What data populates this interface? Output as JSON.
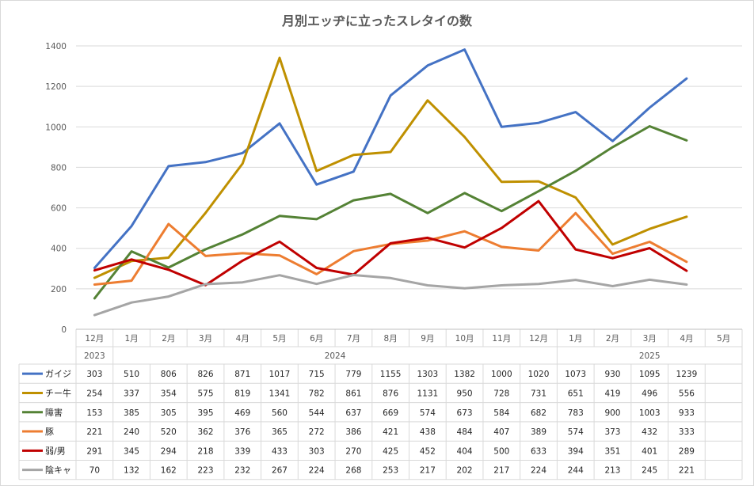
{
  "chart_data": {
    "type": "line",
    "title": "月別エッヂに立ったスレタイの数",
    "xlabel": "",
    "ylabel": "",
    "ylim": [
      0,
      1400
    ],
    "y_ticks": [
      "0",
      "200",
      "400",
      "600",
      "800",
      "1000",
      "1200",
      "1400"
    ],
    "grid": true,
    "legend": "data-table",
    "categories": [
      "12月",
      "1月",
      "2月",
      "3月",
      "4月",
      "5月",
      "6月",
      "7月",
      "8月",
      "9月",
      "10月",
      "11月",
      "12月",
      "1月",
      "2月",
      "3月",
      "4月",
      "5月"
    ],
    "year_groups": [
      {
        "label": "2023",
        "start": 0,
        "span": 1
      },
      {
        "label": "2024",
        "start": 1,
        "span": 12
      },
      {
        "label": "2025",
        "start": 13,
        "span": 5
      }
    ],
    "series": [
      {
        "name": "ガイジ",
        "color": "#4472C4",
        "values": [
          303,
          510,
          806,
          826,
          871,
          1017,
          715,
          779,
          1155,
          1303,
          1382,
          1000,
          1020,
          1073,
          930,
          1095,
          1239,
          null
        ]
      },
      {
        "name": "チー牛",
        "color": "#BF9000",
        "values": [
          254,
          337,
          354,
          575,
          819,
          1341,
          782,
          861,
          876,
          1131,
          950,
          728,
          731,
          651,
          419,
          496,
          556,
          null
        ]
      },
      {
        "name": "障害",
        "color": "#548235",
        "values": [
          153,
          385,
          305,
          395,
          469,
          560,
          544,
          637,
          669,
          574,
          673,
          584,
          682,
          783,
          900,
          1003,
          933,
          null
        ]
      },
      {
        "name": "豚",
        "color": "#ED7D31",
        "values": [
          221,
          240,
          520,
          362,
          376,
          365,
          272,
          386,
          421,
          438,
          484,
          407,
          389,
          574,
          373,
          432,
          333,
          null
        ]
      },
      {
        "name": "弱/男",
        "color": "#C00000",
        "values": [
          291,
          345,
          294,
          218,
          339,
          433,
          303,
          270,
          425,
          452,
          404,
          500,
          633,
          394,
          351,
          401,
          289,
          null
        ]
      },
      {
        "name": "陰キャ",
        "color": "#A5A5A5",
        "values": [
          70,
          132,
          162,
          223,
          232,
          267,
          224,
          268,
          253,
          217,
          202,
          217,
          224,
          244,
          213,
          245,
          221,
          null
        ]
      }
    ]
  }
}
